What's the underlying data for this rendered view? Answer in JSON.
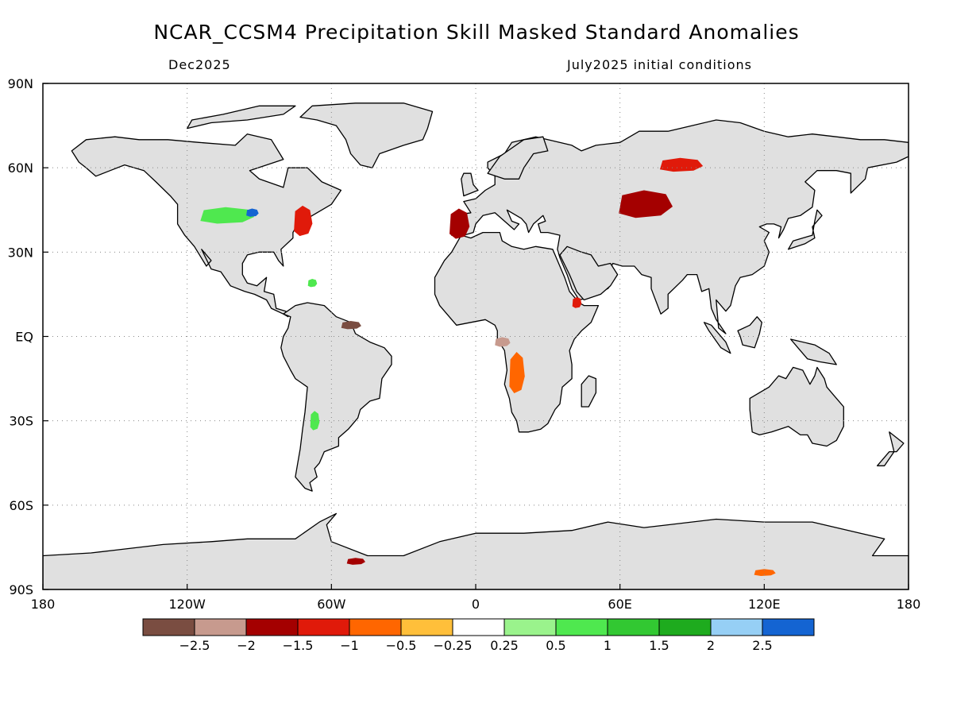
{
  "title": "NCAR_CCSM4 Precipitation Skill Masked Standard Anomalies",
  "subtitle_left": "Dec2025",
  "subtitle_right": "July2025 initial conditions",
  "axes": {
    "lat_ticks": [
      {
        "value": 90,
        "label": "90N"
      },
      {
        "value": 60,
        "label": "60N"
      },
      {
        "value": 30,
        "label": "30N"
      },
      {
        "value": 0,
        "label": "EQ"
      },
      {
        "value": -30,
        "label": "30S"
      },
      {
        "value": -60,
        "label": "60S"
      },
      {
        "value": -90,
        "label": "90S"
      }
    ],
    "lon_ticks": [
      {
        "value": -180,
        "label": "180"
      },
      {
        "value": -120,
        "label": "120W"
      },
      {
        "value": -60,
        "label": "60W"
      },
      {
        "value": 0,
        "label": "0"
      },
      {
        "value": 60,
        "label": "60E"
      },
      {
        "value": 120,
        "label": "120E"
      },
      {
        "value": 180,
        "label": "180"
      }
    ],
    "grid": "dotted"
  },
  "colorbar": {
    "colors": [
      "#7a4d41",
      "#c79a8e",
      "#a40000",
      "#e01a0a",
      "#ff6600",
      "#ffbf3a",
      "#ffffff",
      "#9af38c",
      "#4fe84f",
      "#32c832",
      "#1eab1e",
      "#96cff5",
      "#1464d2"
    ],
    "labels": [
      "-2.5",
      "-2",
      "-1.5",
      "-1",
      "-0.5",
      "-0.25",
      "0.25",
      "0.5",
      "1",
      "1.5",
      "2",
      "2.5"
    ]
  },
  "colors": {
    "land_mask": "#e0e0e0",
    "ocean": "#ffffff",
    "coastline": "#000000"
  },
  "anomaly_regions": [
    {
      "name": "us-north-central-wet",
      "lon": -104,
      "lat": 43,
      "color": "#4fe84f"
    },
    {
      "name": "great-lakes-wet",
      "lon": -93,
      "lat": 44,
      "color": "#1464d2"
    },
    {
      "name": "us-northeast-dry",
      "lon": -72,
      "lat": 41,
      "color": "#e01a0a"
    },
    {
      "name": "iberia-dry",
      "lon": -7,
      "lat": 40,
      "color": "#a40000"
    },
    {
      "name": "kazakhstan-dry",
      "lon": 70,
      "lat": 47,
      "color": "#a40000"
    },
    {
      "name": "siberia-dry",
      "lon": 85,
      "lat": 61,
      "color": "#e01a0a"
    },
    {
      "name": "angola-dry",
      "lon": 17,
      "lat": -13,
      "color": "#ff6600"
    },
    {
      "name": "central-africa-dry",
      "lon": 11,
      "lat": -2,
      "color": "#c79a8e"
    },
    {
      "name": "andes-wet",
      "lon": -67,
      "lat": -30,
      "color": "#4fe84f"
    },
    {
      "name": "caribbean-wet",
      "lon": -68,
      "lat": 19,
      "color": "#4fe84f"
    },
    {
      "name": "guiana-dry",
      "lon": -52,
      "lat": 4,
      "color": "#7a4d41"
    },
    {
      "name": "horn-africa-dry",
      "lon": 42,
      "lat": 12,
      "color": "#e01a0a"
    },
    {
      "name": "antarctica-dry-1",
      "lon": -50,
      "lat": -80,
      "color": "#a40000"
    },
    {
      "name": "antarctica-dry-2",
      "lon": 120,
      "lat": -84,
      "color": "#ff6600"
    }
  ]
}
